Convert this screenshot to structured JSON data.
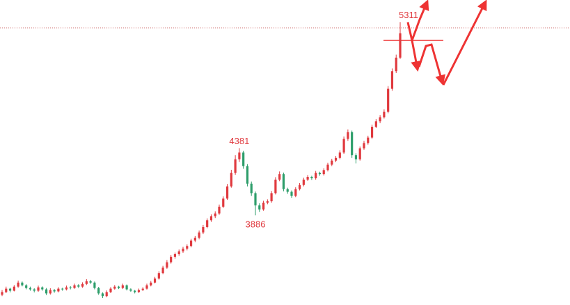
{
  "chart_data": {
    "type": "candlestick",
    "annotations": [
      5311,
      4381,
      3886
    ],
    "up_color": "#e0393e",
    "down_color": "#2e9e6b",
    "candles": [
      [
        3300,
        3335,
        3290,
        3320
      ],
      [
        3320,
        3360,
        3312,
        3345
      ],
      [
        3345,
        3352,
        3318,
        3330
      ],
      [
        3330,
        3372,
        3325,
        3360
      ],
      [
        3360,
        3405,
        3352,
        3390
      ],
      [
        3390,
        3398,
        3362,
        3370
      ],
      [
        3370,
        3378,
        3340,
        3350
      ],
      [
        3350,
        3360,
        3330,
        3340
      ],
      [
        3340,
        3348,
        3318,
        3330
      ],
      [
        3330,
        3368,
        3322,
        3355
      ],
      [
        3355,
        3362,
        3330,
        3340
      ],
      [
        3340,
        3350,
        3298,
        3310
      ],
      [
        3310,
        3348,
        3302,
        3335
      ],
      [
        3335,
        3342,
        3315,
        3325
      ],
      [
        3325,
        3356,
        3318,
        3345
      ],
      [
        3345,
        3352,
        3330,
        3340
      ],
      [
        3340,
        3368,
        3332,
        3355
      ],
      [
        3355,
        3364,
        3340,
        3350
      ],
      [
        3350,
        3382,
        3344,
        3370
      ],
      [
        3370,
        3378,
        3350,
        3360
      ],
      [
        3360,
        3392,
        3352,
        3380
      ],
      [
        3380,
        3415,
        3372,
        3400
      ],
      [
        3400,
        3410,
        3380,
        3390
      ],
      [
        3390,
        3398,
        3340,
        3350
      ],
      [
        3350,
        3358,
        3300,
        3310
      ],
      [
        3310,
        3318,
        3276,
        3290
      ],
      [
        3290,
        3332,
        3282,
        3320
      ],
      [
        3320,
        3356,
        3312,
        3345
      ],
      [
        3345,
        3372,
        3338,
        3360
      ],
      [
        3360,
        3366,
        3342,
        3350
      ],
      [
        3350,
        3382,
        3342,
        3370
      ],
      [
        3370,
        3376,
        3332,
        3340
      ],
      [
        3340,
        3348,
        3322,
        3330
      ],
      [
        3330,
        3336,
        3310,
        3320
      ],
      [
        3320,
        3346,
        3314,
        3335
      ],
      [
        3335,
        3356,
        3328,
        3345
      ],
      [
        3345,
        3382,
        3338,
        3370
      ],
      [
        3370,
        3402,
        3362,
        3390
      ],
      [
        3390,
        3432,
        3384,
        3420
      ],
      [
        3420,
        3474,
        3412,
        3460
      ],
      [
        3460,
        3514,
        3452,
        3500
      ],
      [
        3500,
        3556,
        3492,
        3540
      ],
      [
        3540,
        3594,
        3530,
        3580
      ],
      [
        3580,
        3612,
        3566,
        3600
      ],
      [
        3600,
        3634,
        3588,
        3620
      ],
      [
        3620,
        3654,
        3610,
        3640
      ],
      [
        3640,
        3672,
        3628,
        3660
      ],
      [
        3660,
        3714,
        3650,
        3700
      ],
      [
        3700,
        3734,
        3688,
        3720
      ],
      [
        3720,
        3774,
        3710,
        3760
      ],
      [
        3760,
        3816,
        3748,
        3800
      ],
      [
        3800,
        3864,
        3790,
        3850
      ],
      [
        3850,
        3894,
        3838,
        3880
      ],
      [
        3880,
        3916,
        3866,
        3900
      ],
      [
        3900,
        3966,
        3890,
        3950
      ],
      [
        3950,
        4026,
        3940,
        4010
      ],
      [
        4010,
        4118,
        4000,
        4100
      ],
      [
        4100,
        4222,
        4090,
        4200
      ],
      [
        4200,
        4330,
        4186,
        4300
      ],
      [
        4300,
        4381,
        4280,
        4350
      ],
      [
        4350,
        4362,
        4230,
        4250
      ],
      [
        4250,
        4264,
        4100,
        4120
      ],
      [
        4120,
        4136,
        4030,
        4050
      ],
      [
        4050,
        4062,
        3886,
        3960
      ],
      [
        3960,
        3975,
        3912,
        3930
      ],
      [
        3930,
        3994,
        3920,
        3980
      ],
      [
        3980,
        4004,
        3968,
        3990
      ],
      [
        3990,
        4066,
        3980,
        4050
      ],
      [
        4050,
        4168,
        4040,
        4150
      ],
      [
        4150,
        4210,
        4138,
        4190
      ],
      [
        4190,
        4202,
        4064,
        4080
      ],
      [
        4080,
        4090,
        4046,
        4060
      ],
      [
        4060,
        4070,
        4016,
        4030
      ],
      [
        4030,
        4094,
        4020,
        4080
      ],
      [
        4080,
        4124,
        4070,
        4110
      ],
      [
        4110,
        4164,
        4100,
        4150
      ],
      [
        4150,
        4184,
        4140,
        4170
      ],
      [
        4170,
        4178,
        4148,
        4160
      ],
      [
        4160,
        4214,
        4150,
        4200
      ],
      [
        4200,
        4208,
        4178,
        4190
      ],
      [
        4190,
        4234,
        4180,
        4220
      ],
      [
        4220,
        4274,
        4210,
        4260
      ],
      [
        4260,
        4304,
        4250,
        4290
      ],
      [
        4290,
        4324,
        4278,
        4310
      ],
      [
        4310,
        4366,
        4300,
        4350
      ],
      [
        4350,
        4468,
        4340,
        4450
      ],
      [
        4450,
        4520,
        4436,
        4500
      ],
      [
        4500,
        4512,
        4310,
        4330
      ],
      [
        4330,
        4344,
        4270,
        4300
      ],
      [
        4300,
        4394,
        4290,
        4380
      ],
      [
        4380,
        4436,
        4370,
        4420
      ],
      [
        4420,
        4474,
        4408,
        4460
      ],
      [
        4460,
        4556,
        4450,
        4540
      ],
      [
        4540,
        4596,
        4530,
        4580
      ],
      [
        4580,
        4626,
        4566,
        4610
      ],
      [
        4610,
        4668,
        4600,
        4650
      ],
      [
        4650,
        4840,
        4640,
        4820
      ],
      [
        4820,
        4970,
        4806,
        4950
      ],
      [
        4950,
        5072,
        4936,
        5050
      ],
      [
        5050,
        5311,
        5040,
        5230
      ]
    ]
  }
}
